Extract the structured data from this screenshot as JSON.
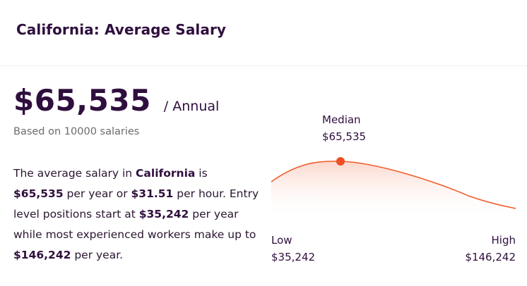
{
  "header": {
    "title": "California: Average Salary"
  },
  "summary": {
    "amount": "$65,535",
    "period": "/ Annual",
    "based_on": "Based on 10000 salaries"
  },
  "description": {
    "p1": "The average salary in ",
    "location": "California",
    "p2": " is ",
    "average": "$65,535",
    "p3": " per year or ",
    "hourly": "$31.51",
    "p4": " per hour. Entry level positions start at ",
    "entry": "$35,242",
    "p5": " per year while most experienced workers make up to ",
    "max": "$146,242",
    "p6": " per year."
  },
  "distribution": {
    "median_label": "Median",
    "median_value": "$65,535",
    "low_label": "Low",
    "low_value": "$35,242",
    "high_label": "High",
    "high_value": "$146,242",
    "curve_color": "#f05a28",
    "marker_color": "#f04e23",
    "fill_color": "#fde6e0",
    "median_position": 0.27
  }
}
